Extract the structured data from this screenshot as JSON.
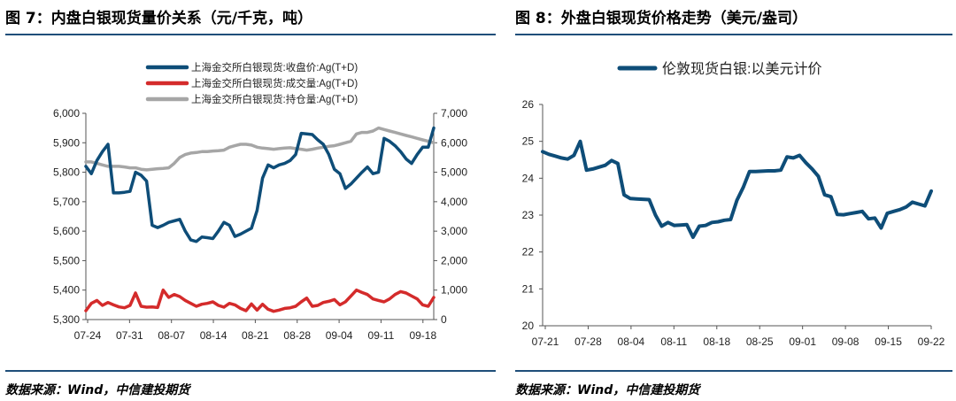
{
  "left": {
    "title": "图 7：内盘白银现货量价关系（元/千克，吨）",
    "source": "数据来源：Wind，中信建投期货"
  },
  "right": {
    "title": "图 8：外盘白银现货价格走势（美元/盎司）",
    "source": "数据来源：Wind，中信建投期货"
  },
  "colors": {
    "navy": "#0e4d78",
    "red": "#d42b2b",
    "gray": "#a6a6a6",
    "rule": "#1f4e79"
  },
  "chart_data": [
    {
      "type": "line",
      "title": "",
      "xlabel": "",
      "ylabel": "",
      "x_ticks": [
        "07-24",
        "07-31",
        "08-07",
        "08-14",
        "08-21",
        "08-28",
        "09-04",
        "09-11",
        "09-18"
      ],
      "ylim": [
        5300,
        6000
      ],
      "y_ticks": [
        "5,300",
        "5,400",
        "5,500",
        "5,600",
        "5,700",
        "5,800",
        "5,900",
        "6,000"
      ],
      "y2lim": [
        0,
        7000
      ],
      "y2_ticks": [
        "0",
        "1,000",
        "2,000",
        "3,000",
        "4,000",
        "5,000",
        "6,000",
        "7,000"
      ],
      "grid": false,
      "legend_position": "top",
      "series": [
        {
          "name": "上海金交所白银现货:收盘价:Ag(T+D)",
          "axis": "left",
          "color": "#0e4d78",
          "points": [
            [
              0,
              5820
            ],
            [
              1,
              5795
            ],
            [
              2,
              5840
            ],
            [
              3,
              5870
            ],
            [
              4,
              5895
            ],
            [
              5,
              5730
            ],
            [
              6,
              5730
            ],
            [
              7,
              5732
            ],
            [
              8,
              5735
            ],
            [
              9,
              5800
            ],
            [
              10,
              5790
            ],
            [
              11,
              5770
            ],
            [
              12,
              5620
            ],
            [
              13,
              5612
            ],
            [
              14,
              5620
            ],
            [
              15,
              5630
            ],
            [
              16,
              5635
            ],
            [
              17,
              5640
            ],
            [
              18,
              5600
            ],
            [
              19,
              5570
            ],
            [
              20,
              5565
            ],
            [
              21,
              5580
            ],
            [
              22,
              5578
            ],
            [
              23,
              5575
            ],
            [
              24,
              5600
            ],
            [
              25,
              5630
            ],
            [
              26,
              5620
            ],
            [
              27,
              5582
            ],
            [
              28,
              5590
            ],
            [
              29,
              5600
            ],
            [
              30,
              5610
            ],
            [
              31,
              5670
            ],
            [
              32,
              5780
            ],
            [
              33,
              5825
            ],
            [
              34,
              5815
            ],
            [
              35,
              5825
            ],
            [
              36,
              5830
            ],
            [
              37,
              5840
            ],
            [
              38,
              5860
            ],
            [
              39,
              5932
            ],
            [
              40,
              5930
            ],
            [
              41,
              5928
            ],
            [
              42,
              5910
            ],
            [
              43,
              5895
            ],
            [
              44,
              5860
            ],
            [
              45,
              5810
            ],
            [
              46,
              5795
            ],
            [
              47,
              5745
            ],
            [
              48,
              5760
            ],
            [
              49,
              5780
            ],
            [
              50,
              5800
            ],
            [
              51,
              5818
            ],
            [
              52,
              5795
            ],
            [
              53,
              5800
            ],
            [
              54,
              5915
            ],
            [
              55,
              5905
            ],
            [
              56,
              5890
            ],
            [
              57,
              5870
            ],
            [
              58,
              5845
            ],
            [
              59,
              5830
            ],
            [
              60,
              5860
            ],
            [
              61,
              5885
            ],
            [
              62,
              5885
            ],
            [
              63,
              5950
            ]
          ]
        },
        {
          "name": "上海金交所白银现货:成交量:Ag(T+D)",
          "axis": "right",
          "color": "#d42b2b",
          "points": [
            [
              0,
              300
            ],
            [
              1,
              550
            ],
            [
              2,
              650
            ],
            [
              3,
              480
            ],
            [
              4,
              580
            ],
            [
              5,
              500
            ],
            [
              6,
              430
            ],
            [
              7,
              400
            ],
            [
              8,
              480
            ],
            [
              9,
              900
            ],
            [
              10,
              450
            ],
            [
              11,
              420
            ],
            [
              12,
              430
            ],
            [
              13,
              410
            ],
            [
              14,
              1000
            ],
            [
              15,
              750
            ],
            [
              16,
              850
            ],
            [
              17,
              780
            ],
            [
              18,
              650
            ],
            [
              19,
              550
            ],
            [
              20,
              450
            ],
            [
              21,
              520
            ],
            [
              22,
              550
            ],
            [
              23,
              600
            ],
            [
              24,
              480
            ],
            [
              25,
              420
            ],
            [
              26,
              550
            ],
            [
              27,
              500
            ],
            [
              28,
              380
            ],
            [
              29,
              300
            ],
            [
              30,
              530
            ],
            [
              31,
              320
            ],
            [
              32,
              520
            ],
            [
              33,
              350
            ],
            [
              34,
              280
            ],
            [
              35,
              320
            ],
            [
              36,
              380
            ],
            [
              37,
              400
            ],
            [
              38,
              450
            ],
            [
              39,
              600
            ],
            [
              40,
              730
            ],
            [
              41,
              450
            ],
            [
              42,
              480
            ],
            [
              43,
              580
            ],
            [
              44,
              620
            ],
            [
              45,
              680
            ],
            [
              46,
              500
            ],
            [
              47,
              600
            ],
            [
              48,
              800
            ],
            [
              49,
              1000
            ],
            [
              50,
              920
            ],
            [
              51,
              850
            ],
            [
              52,
              700
            ],
            [
              53,
              650
            ],
            [
              54,
              600
            ],
            [
              55,
              700
            ],
            [
              56,
              850
            ],
            [
              57,
              950
            ],
            [
              58,
              900
            ],
            [
              59,
              800
            ],
            [
              60,
              700
            ],
            [
              61,
              500
            ],
            [
              62,
              450
            ],
            [
              63,
              750
            ]
          ]
        },
        {
          "name": "上海金交所白银现货:持仓量:Ag(T+D)",
          "axis": "right",
          "color": "#a6a6a6",
          "points": [
            [
              0,
              5350
            ],
            [
              1,
              5350
            ],
            [
              2,
              5300
            ],
            [
              3,
              5250
            ],
            [
              4,
              5200
            ],
            [
              5,
              5200
            ],
            [
              6,
              5200
            ],
            [
              7,
              5180
            ],
            [
              8,
              5150
            ],
            [
              9,
              5150
            ],
            [
              10,
              5100
            ],
            [
              11,
              5080
            ],
            [
              12,
              5100
            ],
            [
              13,
              5120
            ],
            [
              14,
              5130
            ],
            [
              15,
              5150
            ],
            [
              16,
              5300
            ],
            [
              17,
              5500
            ],
            [
              18,
              5600
            ],
            [
              19,
              5650
            ],
            [
              20,
              5670
            ],
            [
              21,
              5700
            ],
            [
              22,
              5700
            ],
            [
              23,
              5720
            ],
            [
              24,
              5730
            ],
            [
              25,
              5750
            ],
            [
              26,
              5850
            ],
            [
              27,
              5900
            ],
            [
              28,
              5950
            ],
            [
              29,
              5950
            ],
            [
              30,
              5920
            ],
            [
              31,
              5850
            ],
            [
              32,
              5820
            ],
            [
              33,
              5800
            ],
            [
              34,
              5780
            ],
            [
              35,
              5800
            ],
            [
              36,
              5820
            ],
            [
              37,
              5830
            ],
            [
              38,
              5800
            ],
            [
              39,
              5780
            ],
            [
              40,
              5750
            ],
            [
              41,
              5780
            ],
            [
              42,
              5820
            ],
            [
              43,
              5850
            ],
            [
              44,
              5880
            ],
            [
              45,
              5900
            ],
            [
              46,
              5950
            ],
            [
              47,
              6000
            ],
            [
              48,
              6050
            ],
            [
              49,
              6300
            ],
            [
              50,
              6350
            ],
            [
              51,
              6350
            ],
            [
              52,
              6400
            ],
            [
              53,
              6500
            ],
            [
              54,
              6450
            ],
            [
              55,
              6400
            ],
            [
              56,
              6350
            ],
            [
              57,
              6300
            ],
            [
              58,
              6250
            ],
            [
              59,
              6200
            ],
            [
              60,
              6150
            ],
            [
              61,
              6100
            ],
            [
              62,
              6050
            ],
            [
              63,
              6000
            ]
          ]
        }
      ]
    },
    {
      "type": "line",
      "title": "",
      "xlabel": "",
      "ylabel": "",
      "x_ticks": [
        "07-21",
        "07-28",
        "08-04",
        "08-11",
        "08-18",
        "08-25",
        "09-01",
        "09-08",
        "09-15",
        "09-22"
      ],
      "ylim": [
        20,
        26
      ],
      "y_ticks": [
        "20",
        "21",
        "22",
        "23",
        "24",
        "25",
        "26"
      ],
      "grid": false,
      "legend_position": "top",
      "series": [
        {
          "name": "伦敦现货白银:以美元计价",
          "color": "#0e4d78",
          "points": [
            [
              0,
              24.72
            ],
            [
              1,
              24.65
            ],
            [
              2,
              24.6
            ],
            [
              3,
              24.55
            ],
            [
              4,
              24.52
            ],
            [
              5,
              24.62
            ],
            [
              6,
              25.0
            ],
            [
              7,
              24.22
            ],
            [
              8,
              24.25
            ],
            [
              9,
              24.3
            ],
            [
              10,
              24.35
            ],
            [
              11,
              24.48
            ],
            [
              12,
              24.4
            ],
            [
              13,
              23.55
            ],
            [
              14,
              23.45
            ],
            [
              15,
              23.44
            ],
            [
              16,
              23.43
            ],
            [
              17,
              23.42
            ],
            [
              18,
              23.0
            ],
            [
              19,
              22.7
            ],
            [
              20,
              22.8
            ],
            [
              21,
              22.72
            ],
            [
              22,
              22.73
            ],
            [
              23,
              22.74
            ],
            [
              24,
              22.4
            ],
            [
              25,
              22.7
            ],
            [
              26,
              22.72
            ],
            [
              27,
              22.8
            ],
            [
              28,
              22.82
            ],
            [
              29,
              22.86
            ],
            [
              30,
              22.88
            ],
            [
              31,
              23.4
            ],
            [
              32,
              23.75
            ],
            [
              33,
              24.18
            ],
            [
              34,
              24.18
            ],
            [
              35,
              24.19
            ],
            [
              36,
              24.2
            ],
            [
              37,
              24.2
            ],
            [
              38,
              24.22
            ],
            [
              39,
              24.58
            ],
            [
              40,
              24.55
            ],
            [
              41,
              24.62
            ],
            [
              42,
              24.42
            ],
            [
              43,
              24.25
            ],
            [
              44,
              24.05
            ],
            [
              45,
              23.55
            ],
            [
              46,
              23.5
            ],
            [
              47,
              23.02
            ],
            [
              48,
              23.01
            ],
            [
              49,
              23.04
            ],
            [
              50,
              23.07
            ],
            [
              51,
              23.1
            ],
            [
              52,
              22.9
            ],
            [
              53,
              22.92
            ],
            [
              54,
              22.65
            ],
            [
              55,
              23.05
            ],
            [
              56,
              23.1
            ],
            [
              57,
              23.15
            ],
            [
              58,
              23.22
            ],
            [
              59,
              23.35
            ],
            [
              60,
              23.3
            ],
            [
              61,
              23.25
            ],
            [
              62,
              23.65
            ]
          ]
        }
      ]
    }
  ]
}
